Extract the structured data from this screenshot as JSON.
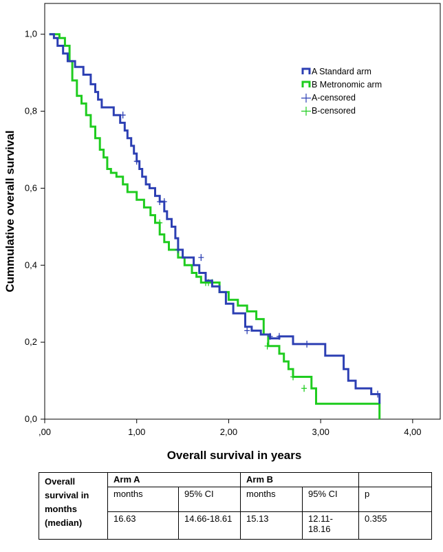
{
  "colors": {
    "arm_a": "#2c3fb3",
    "arm_b": "#1fcc1f",
    "frame": "#000000"
  },
  "chart_data": {
    "type": "line",
    "title": "",
    "xlabel": "Overall survival in years",
    "ylabel": "Cummulative overall survival",
    "xlim": [
      0,
      4.3
    ],
    "ylim": [
      0,
      1.08
    ],
    "x_ticks": [
      0,
      1,
      2,
      3,
      4
    ],
    "x_tick_labels": [
      ",00",
      "1,00",
      "2,00",
      "3,00",
      "4,00"
    ],
    "y_ticks": [
      0,
      0.2,
      0.4,
      0.6,
      0.8,
      1.0
    ],
    "y_tick_labels": [
      "0,0",
      "0,2",
      "0,4",
      "0,6",
      "0,8",
      "1,0"
    ],
    "legend": [
      "A Standard arm",
      "B Metronomic arm",
      "A-censored",
      "B-censored"
    ],
    "legend_position": "top-right",
    "series": [
      {
        "name": "A Standard arm",
        "step": true,
        "x": [
          0.05,
          0.1,
          0.14,
          0.2,
          0.25,
          0.33,
          0.42,
          0.5,
          0.55,
          0.58,
          0.62,
          0.66,
          0.75,
          0.82,
          0.87,
          0.9,
          0.94,
          0.97,
          1.0,
          1.03,
          1.06,
          1.1,
          1.14,
          1.2,
          1.25,
          1.3,
          1.33,
          1.38,
          1.42,
          1.45,
          1.5,
          1.62,
          1.68,
          1.75,
          1.82,
          1.9,
          1.97,
          2.05,
          2.18,
          2.25,
          2.35,
          2.45,
          2.55,
          2.7,
          2.85,
          3.05,
          3.25,
          3.3,
          3.38,
          3.55,
          3.64
        ],
        "y": [
          1.0,
          0.99,
          0.97,
          0.95,
          0.93,
          0.915,
          0.895,
          0.87,
          0.85,
          0.83,
          0.81,
          0.81,
          0.79,
          0.77,
          0.75,
          0.73,
          0.71,
          0.69,
          0.67,
          0.65,
          0.63,
          0.61,
          0.6,
          0.58,
          0.565,
          0.54,
          0.52,
          0.5,
          0.47,
          0.44,
          0.42,
          0.4,
          0.38,
          0.36,
          0.345,
          0.33,
          0.3,
          0.275,
          0.24,
          0.23,
          0.22,
          0.21,
          0.215,
          0.195,
          0.195,
          0.165,
          0.13,
          0.1,
          0.08,
          0.065,
          0.04
        ],
        "censored": [
          [
            0.85,
            0.79
          ],
          [
            1.0,
            0.67
          ],
          [
            1.25,
            0.565
          ],
          [
            1.3,
            0.565
          ],
          [
            1.45,
            0.44
          ],
          [
            1.7,
            0.42
          ],
          [
            2.2,
            0.23
          ],
          [
            2.45,
            0.215
          ],
          [
            2.55,
            0.215
          ],
          [
            2.85,
            0.195
          ],
          [
            3.62,
            0.065
          ]
        ]
      },
      {
        "name": "B Metronomic arm",
        "step": true,
        "x": [
          0.05,
          0.16,
          0.22,
          0.27,
          0.3,
          0.35,
          0.4,
          0.45,
          0.5,
          0.55,
          0.6,
          0.64,
          0.68,
          0.72,
          0.78,
          0.85,
          0.9,
          1.0,
          1.08,
          1.15,
          1.2,
          1.25,
          1.3,
          1.35,
          1.45,
          1.52,
          1.6,
          1.65,
          1.7,
          1.8,
          1.9,
          2.0,
          2.1,
          2.2,
          2.3,
          2.38,
          2.43,
          2.55,
          2.6,
          2.65,
          2.7,
          2.9,
          2.95,
          3.62,
          3.64
        ],
        "y": [
          1.0,
          0.99,
          0.97,
          0.93,
          0.88,
          0.84,
          0.82,
          0.79,
          0.76,
          0.73,
          0.7,
          0.68,
          0.65,
          0.64,
          0.63,
          0.61,
          0.59,
          0.57,
          0.55,
          0.53,
          0.51,
          0.48,
          0.46,
          0.44,
          0.42,
          0.4,
          0.38,
          0.37,
          0.355,
          0.355,
          0.33,
          0.31,
          0.295,
          0.28,
          0.26,
          0.22,
          0.19,
          0.17,
          0.15,
          0.13,
          0.11,
          0.08,
          0.04,
          0.04,
          0.0
        ],
        "censored": [
          [
            1.25,
            0.51
          ],
          [
            1.75,
            0.355
          ],
          [
            1.78,
            0.355
          ],
          [
            1.82,
            0.355
          ],
          [
            2.42,
            0.19
          ],
          [
            2.7,
            0.11
          ],
          [
            2.82,
            0.08
          ]
        ]
      }
    ]
  },
  "table": {
    "row_header": "Overall survival in months (median)",
    "arm_a": "Arm A",
    "arm_b": "Arm B",
    "months_label": "months",
    "ci_label": "95% CI",
    "p_label": "p",
    "a_months": "16.63",
    "a_ci": "14.66-18.61",
    "b_months": "15.13",
    "b_ci": "12.11-18.16",
    "p_value": "0.355"
  }
}
